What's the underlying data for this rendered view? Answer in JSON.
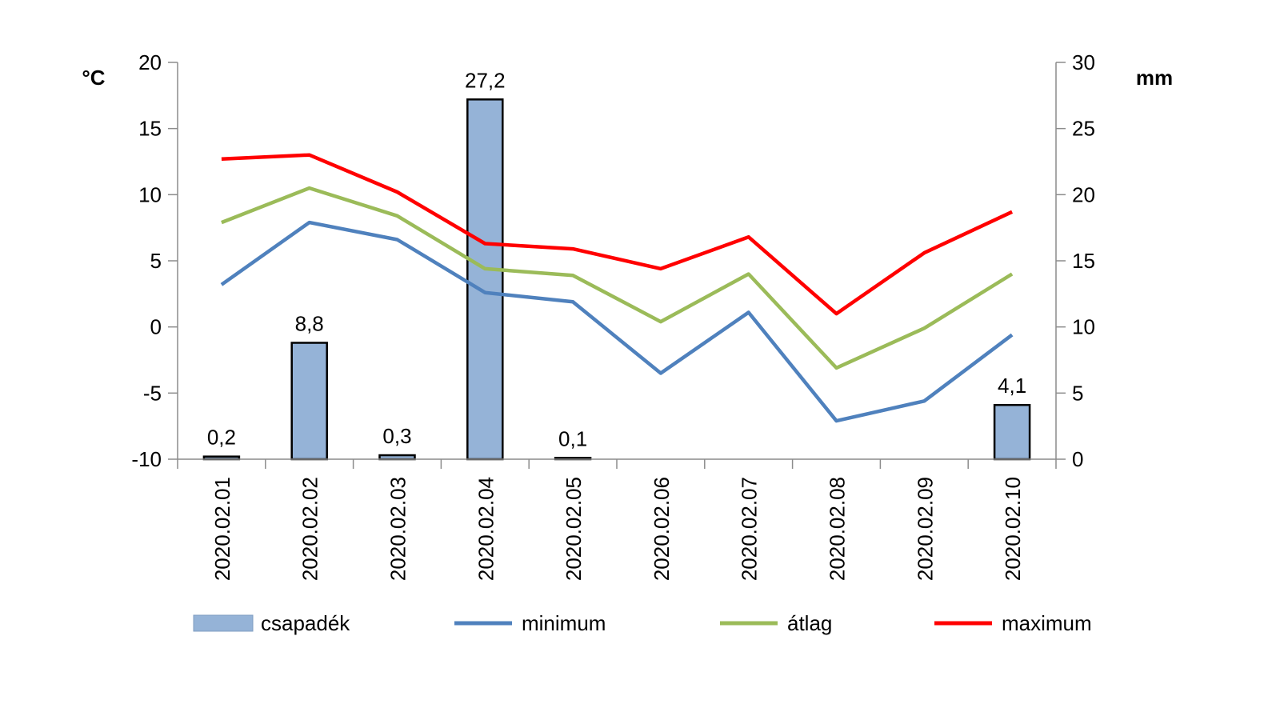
{
  "chart_data": {
    "type": "bar+line",
    "categories": [
      "2020.02.01",
      "2020.02.02",
      "2020.02.03",
      "2020.02.04",
      "2020.02.05",
      "2020.02.06",
      "2020.02.07",
      "2020.02.08",
      "2020.02.09",
      "2020.02.10"
    ],
    "left_axis": {
      "label": "°C",
      "ylim": [
        -10,
        20
      ],
      "ticks": [
        -10,
        -5,
        0,
        5,
        10,
        15,
        20
      ]
    },
    "right_axis": {
      "label": "mm",
      "ylim": [
        0,
        30
      ],
      "ticks": [
        0,
        5,
        10,
        15,
        20,
        25,
        30
      ]
    },
    "bars": {
      "name": "csapadék",
      "axis": "right",
      "color": "#95b3d7",
      "values": [
        0.2,
        8.8,
        0.3,
        27.2,
        0.1,
        null,
        null,
        null,
        null,
        4.1
      ],
      "labels": [
        "0,2",
        "8,8",
        "0,3",
        "27,2",
        "0,1",
        "",
        "",
        "",
        "",
        "4,1"
      ]
    },
    "series": [
      {
        "name": "minimum",
        "axis": "left",
        "color": "#4f81bd",
        "values": [
          3.2,
          7.9,
          6.6,
          2.6,
          1.9,
          -3.5,
          1.1,
          -7.1,
          -5.6,
          -0.6
        ]
      },
      {
        "name": "átlag",
        "axis": "left",
        "color": "#9bbb59",
        "values": [
          7.9,
          10.5,
          8.4,
          4.4,
          3.9,
          0.4,
          4.0,
          -3.1,
          -0.1,
          4.0
        ]
      },
      {
        "name": "maximum",
        "axis": "left",
        "color": "#ff0000",
        "values": [
          12.7,
          13.0,
          10.2,
          6.3,
          5.9,
          4.4,
          6.8,
          1.0,
          5.6,
          8.7
        ]
      }
    ],
    "legend": {
      "position": "bottom",
      "entries": [
        "csapadék",
        "minimum",
        "átlag",
        "maximum"
      ]
    },
    "grid": false
  }
}
